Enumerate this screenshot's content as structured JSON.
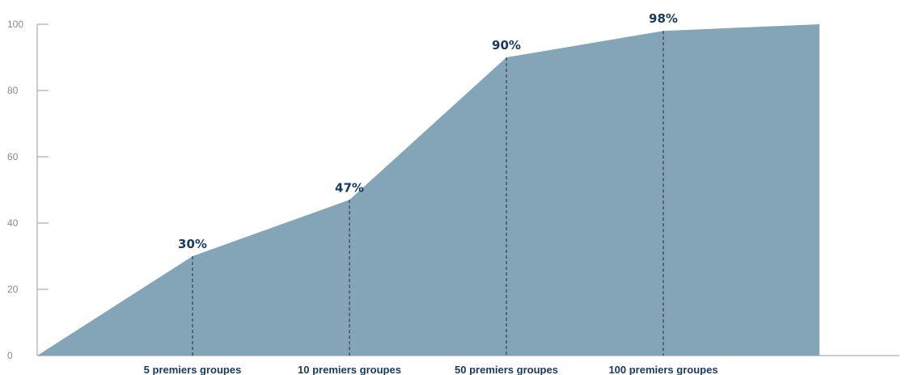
{
  "chart_data": {
    "type": "area",
    "title": "",
    "xlabel": "",
    "ylabel": "",
    "ylim": [
      0,
      100
    ],
    "yticks": [
      0,
      20,
      40,
      60,
      80,
      100
    ],
    "categories": [
      "",
      "5 premiers groupes",
      "10 premiers groupes",
      "50 premiers groupes",
      "100 premiers groupes",
      ""
    ],
    "values": [
      0,
      30,
      47,
      90,
      98,
      100
    ],
    "data_labels": [
      "",
      "30%",
      "47%",
      "90%",
      "98%",
      ""
    ],
    "dashed_markers_at": [
      1,
      2,
      3,
      4
    ],
    "grid": false,
    "legend": "none",
    "colors": {
      "area": "#84a5b8",
      "label": "#173a5e",
      "axis": "#9a9a9a",
      "dash": "#2a3f52"
    }
  }
}
